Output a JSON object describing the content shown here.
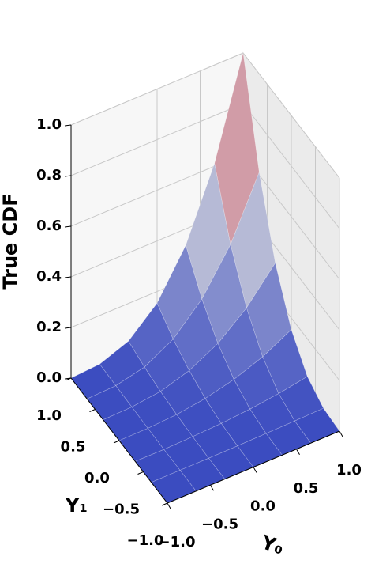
{
  "chart_data": {
    "type": "surface",
    "zlabel": "True CDF",
    "xlabel": "Y₀",
    "ylabel": "Y₁",
    "x": [
      -1,
      -0.6667,
      -0.3333,
      0,
      0.3333,
      0.6667,
      1
    ],
    "y": [
      -1,
      -0.6667,
      -0.3333,
      0,
      0.3333,
      0.6667,
      1
    ],
    "z": [
      [
        0,
        0,
        0,
        0,
        0,
        0,
        0
      ],
      [
        0,
        0,
        0,
        0.001,
        0.003,
        0.005,
        0.008
      ],
      [
        0,
        0,
        0.003,
        0.008,
        0.017,
        0.031,
        0.051
      ],
      [
        0,
        0.001,
        0.008,
        0.024,
        0.052,
        0.094,
        0.154
      ],
      [
        0,
        0.003,
        0.017,
        0.052,
        0.112,
        0.205,
        0.335
      ],
      [
        0,
        0.005,
        0.031,
        0.094,
        0.205,
        0.373,
        0.611
      ],
      [
        0,
        0.008,
        0.051,
        0.154,
        0.335,
        0.611,
        1
      ]
    ],
    "colormap": "coolwarm",
    "xlim": [
      -1,
      1
    ],
    "ylim": [
      -1,
      1
    ],
    "zlim": [
      0,
      1
    ],
    "xticks": [
      {
        "value": -1,
        "label": "−1.0"
      },
      {
        "value": -0.5,
        "label": "−0.5"
      },
      {
        "value": 0,
        "label": "0.0"
      },
      {
        "value": 0.5,
        "label": "0.5"
      },
      {
        "value": 1,
        "label": "1.0"
      }
    ],
    "yticks": [
      {
        "value": -1,
        "label": "−1.0"
      },
      {
        "value": -0.5,
        "label": "−0.5"
      },
      {
        "value": 0,
        "label": "0.0"
      },
      {
        "value": 0.5,
        "label": "0.5"
      },
      {
        "value": 1,
        "label": "1.0"
      }
    ],
    "zticks": [
      {
        "value": 0,
        "label": "0.0"
      },
      {
        "value": 0.2,
        "label": "0.2"
      },
      {
        "value": 0.4,
        "label": "0.4"
      },
      {
        "value": 0.6,
        "label": "0.6"
      },
      {
        "value": 0.8,
        "label": "0.8"
      },
      {
        "value": 1,
        "label": "1.0"
      }
    ],
    "grid": true
  }
}
